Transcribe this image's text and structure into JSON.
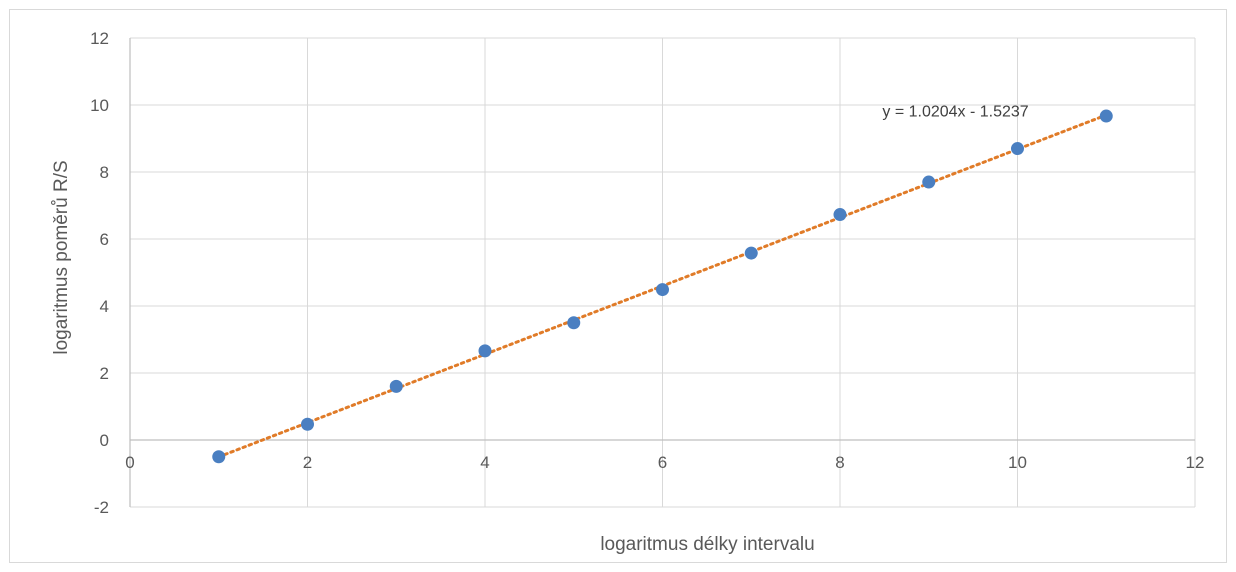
{
  "chart_data": {
    "type": "scatter",
    "title": "",
    "xlabel": "logaritmus délky intervalu",
    "ylabel": "logaritmus poměrů R/S",
    "xlim": [
      0,
      12
    ],
    "ylim": [
      -2,
      12
    ],
    "x_ticks": [
      "0",
      "2",
      "4",
      "6",
      "8",
      "10",
      "12"
    ],
    "y_ticks": [
      "-2",
      "0",
      "2",
      "4",
      "6",
      "8",
      "10",
      "12"
    ],
    "grid": true,
    "legend": "none",
    "series": [
      {
        "x": [
          1,
          2,
          3,
          4,
          5,
          6,
          7,
          8,
          9,
          10,
          11
        ],
        "y": [
          -0.5,
          0.47,
          1.6,
          2.66,
          3.5,
          4.49,
          5.58,
          6.73,
          7.7,
          8.7,
          9.67
        ],
        "color": "#4a7fc1"
      }
    ],
    "trendline": {
      "type": "linear",
      "slope": 1.0204,
      "intercept": -1.5237,
      "x_range": [
        1,
        11
      ],
      "color": "#e07b28",
      "style": "dotted",
      "equation_label": "y = 1.0204x - 1.5237"
    }
  }
}
